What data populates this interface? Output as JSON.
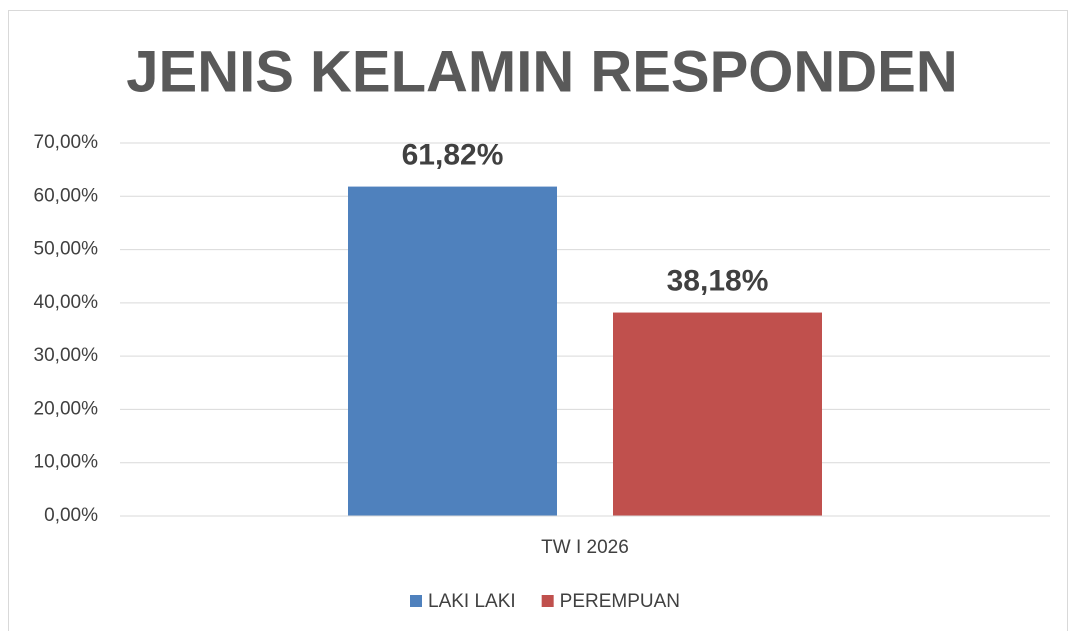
{
  "chart_data": {
    "type": "bar",
    "title": "JENIS KELAMIN RESPONDEN",
    "categories": [
      "TW I 2026"
    ],
    "series": [
      {
        "name": "LAKI LAKI",
        "color": "#4f81bd",
        "values": [
          61.82
        ],
        "value_labels": [
          "61,82%"
        ]
      },
      {
        "name": "PEREMPUAN",
        "color": "#c0504d",
        "values": [
          38.18
        ],
        "value_labels": [
          "38,18%"
        ]
      }
    ],
    "ylim": [
      0,
      70
    ],
    "yticks": [
      {
        "value": 0,
        "label": "0,00%"
      },
      {
        "value": 10,
        "label": "10,00%"
      },
      {
        "value": 20,
        "label": "20,00%"
      },
      {
        "value": 30,
        "label": "30,00%"
      },
      {
        "value": 40,
        "label": "40,00%"
      },
      {
        "value": 50,
        "label": "50,00%"
      },
      {
        "value": 60,
        "label": "60,00%"
      },
      {
        "value": 70,
        "label": "70,00%"
      }
    ],
    "grid": true,
    "legend": "bottom"
  }
}
